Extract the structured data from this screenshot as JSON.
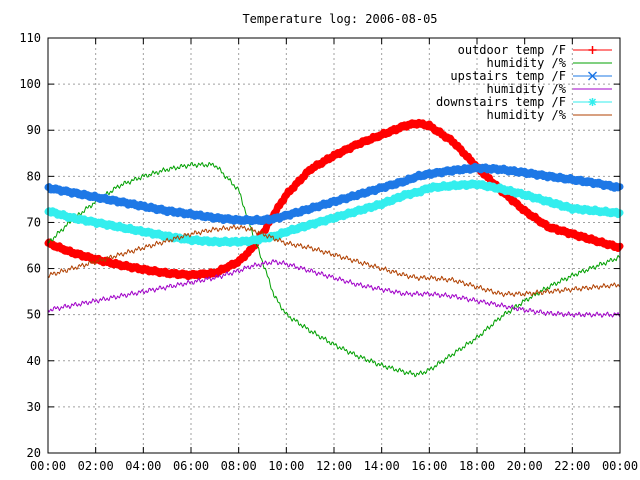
{
  "chart_data": {
    "type": "line",
    "title": "Temperature log: 2006-08-05",
    "xlabel": "",
    "ylabel": "",
    "x_ticks": [
      "00:00",
      "02:00",
      "04:00",
      "06:00",
      "08:00",
      "10:00",
      "12:00",
      "14:00",
      "16:00",
      "18:00",
      "20:00",
      "22:00",
      "00:00"
    ],
    "x_range_hours": [
      0,
      24
    ],
    "y_ticks": [
      20,
      30,
      40,
      50,
      60,
      70,
      80,
      90,
      100,
      110
    ],
    "ylim": [
      20,
      110
    ],
    "grid": true,
    "legend_position": "top-right",
    "x_hours": [
      0,
      1,
      2,
      3,
      4,
      5,
      6,
      7,
      8,
      8.5,
      9,
      9.5,
      10,
      11,
      12,
      13,
      14,
      15,
      15.5,
      16,
      17,
      18,
      19,
      20,
      21,
      22,
      23,
      24
    ],
    "series": [
      {
        "name": "outdoor temp /F",
        "color": "#ff0000",
        "style": "thick-points",
        "values": [
          65.5,
          63.5,
          62.0,
          60.8,
          59.8,
          59.0,
          58.6,
          59.0,
          61.5,
          64.0,
          67.5,
          72.0,
          76.0,
          81.5,
          84.5,
          87.0,
          89.0,
          91.0,
          91.5,
          91.0,
          87.5,
          82.0,
          77.0,
          72.5,
          69.0,
          67.5,
          66.0,
          64.5
        ]
      },
      {
        "name": "humidity /%",
        "color": "#00a000",
        "style": "line",
        "values": [
          65.5,
          70.5,
          74.5,
          78.0,
          80.0,
          81.5,
          82.5,
          82.5,
          77.0,
          69.0,
          61.5,
          54.0,
          50.0,
          46.5,
          43.5,
          41.0,
          39.0,
          37.5,
          37.0,
          38.0,
          41.5,
          45.0,
          49.5,
          53.0,
          56.0,
          58.5,
          60.5,
          62.5
        ]
      },
      {
        "name": "upstairs temp /F",
        "color": "#1e78e6",
        "style": "thick-points",
        "values": [
          77.5,
          76.5,
          75.5,
          74.5,
          73.5,
          72.5,
          71.8,
          71.0,
          70.5,
          70.5,
          70.5,
          70.8,
          71.5,
          73.0,
          74.5,
          76.0,
          77.5,
          79.0,
          80.0,
          80.5,
          81.3,
          81.8,
          81.5,
          80.8,
          80.0,
          79.3,
          78.5,
          77.5
        ]
      },
      {
        "name": "humidity /%",
        "color": "#a000c8",
        "style": "line",
        "values": [
          51.0,
          52.0,
          53.0,
          54.0,
          55.0,
          56.0,
          57.0,
          58.0,
          59.5,
          60.5,
          61.0,
          61.5,
          61.0,
          59.5,
          58.0,
          56.5,
          55.5,
          54.5,
          54.5,
          54.5,
          54.0,
          53.0,
          52.0,
          51.0,
          50.3,
          50.0,
          50.0,
          50.0
        ]
      },
      {
        "name": "downstairs temp /F",
        "color": "#33eeee",
        "style": "thick-points",
        "values": [
          72.5,
          71.0,
          70.0,
          69.0,
          68.0,
          67.0,
          66.2,
          65.8,
          65.8,
          66.0,
          66.5,
          67.0,
          68.0,
          69.5,
          71.0,
          72.5,
          74.0,
          76.0,
          76.5,
          77.5,
          78.0,
          78.3,
          77.3,
          76.0,
          74.5,
          73.0,
          72.5,
          72.0
        ]
      },
      {
        "name": "humidity /%",
        "color": "#b04000",
        "style": "line",
        "values": [
          58.5,
          60.0,
          61.5,
          63.0,
          64.5,
          66.0,
          67.5,
          68.5,
          69.0,
          68.5,
          67.5,
          66.5,
          65.5,
          64.5,
          63.0,
          61.5,
          60.0,
          58.5,
          58.0,
          58.0,
          57.5,
          56.0,
          54.5,
          54.5,
          55.0,
          55.5,
          56.0,
          56.5
        ]
      }
    ]
  }
}
